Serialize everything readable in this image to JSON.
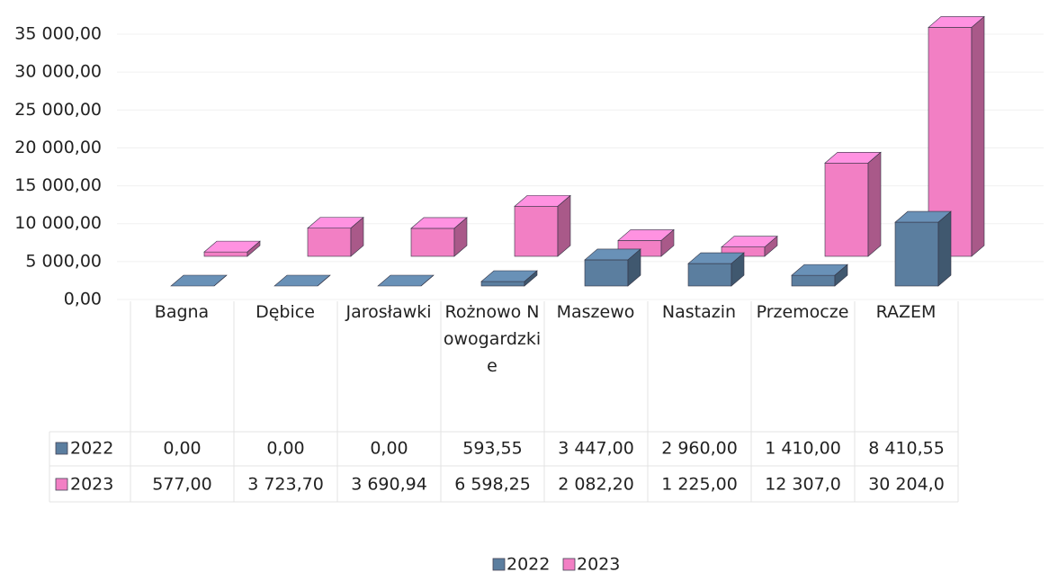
{
  "chart_data": {
    "type": "bar3d",
    "categories": [
      "Bagna",
      "Dębice",
      "Jarosławki",
      "Rożnowo Nowogardzkie",
      "Maszewo",
      "Nastazin",
      "Przemocze",
      "RAZEM"
    ],
    "series": [
      {
        "name": "2022",
        "color": "#5b7e9f",
        "values": [
          0,
          0,
          0,
          593.55,
          3447,
          2960,
          1410,
          8410.55
        ],
        "value_labels": [
          "0,00",
          "0,00",
          "0,00",
          "593,55",
          "3 447,00",
          "2 960,00",
          "1 410,00",
          "8 410,55"
        ]
      },
      {
        "name": "2023",
        "color": "#f27fc4",
        "values": [
          577,
          3723.7,
          3690.94,
          6598.25,
          2082.2,
          1225,
          12307.0,
          30204.0
        ],
        "value_labels": [
          "577,00",
          "3 723,70",
          "3 690,94",
          "6 598,25",
          "2 082,20",
          "1 225,00",
          "12 307,0",
          "30 204,0"
        ]
      }
    ],
    "ylim": [
      0,
      35000
    ],
    "yticks": [
      {
        "value": 0,
        "label": "0,00"
      },
      {
        "value": 5000,
        "label": "5 000,00"
      },
      {
        "value": 10000,
        "label": "10 000,00"
      },
      {
        "value": 15000,
        "label": "15 000,00"
      },
      {
        "value": 20000,
        "label": "20 000,00"
      },
      {
        "value": 25000,
        "label": "25 000,00"
      },
      {
        "value": 30000,
        "label": "30 000,00"
      },
      {
        "value": 35000,
        "label": "35 000,00"
      }
    ],
    "grid": true
  }
}
